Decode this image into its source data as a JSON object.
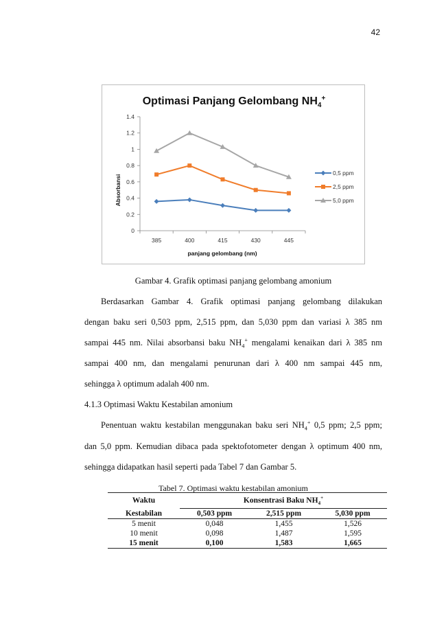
{
  "page_number": "42",
  "chart_data": {
    "type": "line",
    "title": "Optimasi Panjang Gelombang NH",
    "title_subscript": "4",
    "title_superscript": "+",
    "xlabel": "panjang gelombang (nm)",
    "ylabel": "Absorbansi",
    "categories": [
      "385",
      "400",
      "415",
      "430",
      "445"
    ],
    "yticks": [
      "0",
      "0.2",
      "0.4",
      "0.6",
      "0.8",
      "1",
      "1.2",
      "1.4"
    ],
    "ylim": [
      0,
      1.4
    ],
    "grid": false,
    "legend_position": "right",
    "series": [
      {
        "name": "0,5 ppm",
        "values": [
          0.36,
          0.38,
          0.31,
          0.25,
          0.25
        ],
        "color": "#4a7ebb",
        "marker": "diamond"
      },
      {
        "name": "2,5 ppm",
        "values": [
          0.69,
          0.8,
          0.63,
          0.5,
          0.46
        ],
        "color": "#f07c2a",
        "marker": "square"
      },
      {
        "name": "5,0 ppm",
        "values": [
          0.98,
          1.2,
          1.03,
          0.8,
          0.66
        ],
        "color": "#a6a6a6",
        "marker": "triangle"
      }
    ]
  },
  "figure_caption": "Gambar 4. Grafik optimasi panjang gelombang amonium",
  "para1": {
    "line1": "Berdasarkan Gambar 4. Grafik optimasi panjang gelombang dilakukan",
    "line2": "dengan baku seri 0,503 ppm, 2,515 ppm, dan 5,030 ppm dan variasi λ 385 nm",
    "line3_a": "sampai 445 nm. Nilai absorbansi baku NH",
    "line3_sub": "4",
    "line3_sup": "+",
    "line3_b": " mengalami kenaikan dari λ 385 nm",
    "line4": "sampai 400 nm, dan mengalami penurunan dari λ 400 nm sampai 445 nm,",
    "line5": "sehingga λ optimum adalah 400 nm."
  },
  "section_heading": "4.1.3  Optimasi Waktu Kestabilan amonium",
  "para2": {
    "line1_a": "Penentuan waktu kestabilan menggunakan baku seri NH",
    "line1_sub": "4",
    "line1_sup": "+",
    "line1_b": " 0,5 ppm; 2,5 ppm;",
    "line2": "dan 5,0 ppm. Kemudian dibaca pada spektofotometer dengan λ optimum 400 nm,",
    "line3": "sehingga didapatkan hasil seperti pada Tabel 7 dan Gambar 5."
  },
  "table": {
    "caption": "Tabel 7. Optimasi waktu kestabilan amonium",
    "header_waktu": "Waktu",
    "header_kestabilan": "Kestabilan",
    "header_konsentrasi": "Konsentrasi Baku NH",
    "header_konsentrasi_sub": "4",
    "header_konsentrasi_sup": "+",
    "columns": [
      "0,503 ppm",
      "2,515 ppm",
      "5,030 ppm"
    ],
    "rows": [
      {
        "waktu": "5 menit",
        "values": [
          "0,048",
          "1,455",
          "1,526"
        ]
      },
      {
        "waktu": "10 menit",
        "values": [
          "0,098",
          "1,487",
          "1,595"
        ]
      },
      {
        "waktu": "15 menit",
        "values": [
          "0,100",
          "1,583",
          "1,665"
        ]
      }
    ]
  }
}
